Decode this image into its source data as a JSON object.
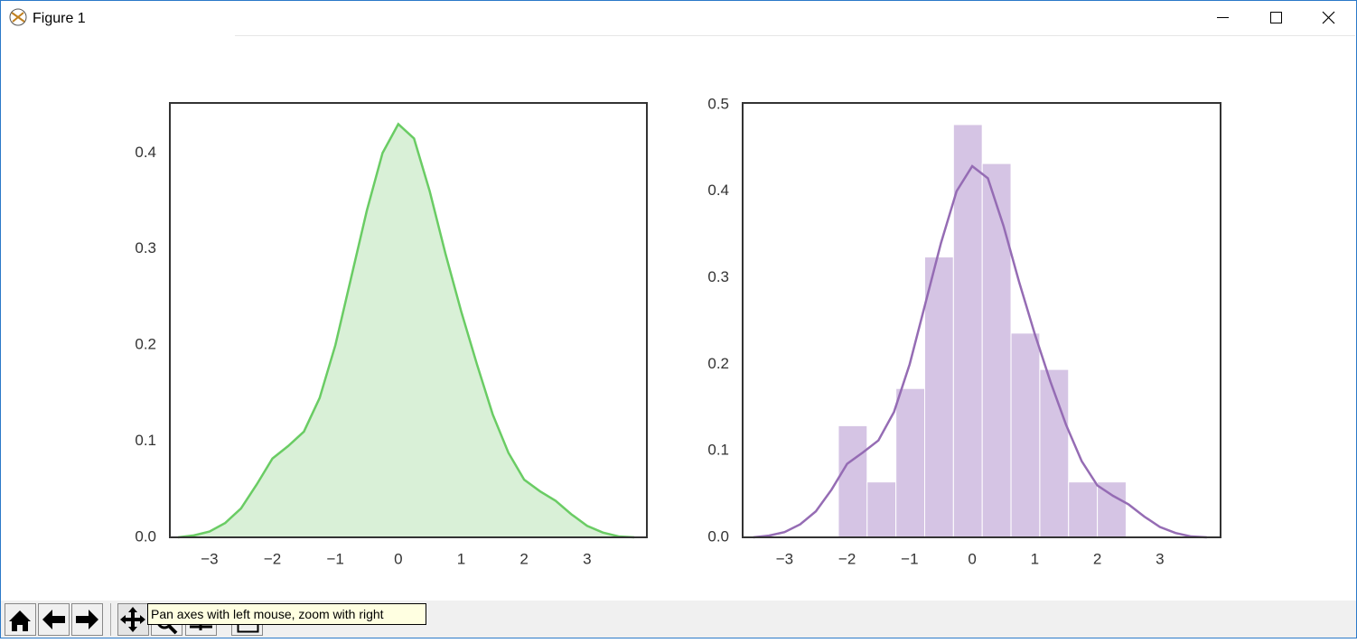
{
  "window": {
    "title": "Figure 1"
  },
  "toolbar": {
    "tooltip": "Pan axes with left mouse, zoom with right"
  },
  "chart_data": [
    {
      "type": "area",
      "x": [
        -3.5,
        -3.25,
        -3.0,
        -2.75,
        -2.5,
        -2.25,
        -2.0,
        -1.75,
        -1.5,
        -1.25,
        -1.0,
        -0.75,
        -0.5,
        -0.25,
        0,
        0.25,
        0.5,
        0.75,
        1.0,
        1.25,
        1.5,
        1.75,
        2.0,
        2.25,
        2.5,
        2.75,
        3.0,
        3.25,
        3.5,
        3.75
      ],
      "values": [
        0.0,
        0.002,
        0.006,
        0.015,
        0.03,
        0.055,
        0.082,
        0.095,
        0.11,
        0.145,
        0.2,
        0.27,
        0.34,
        0.4,
        0.43,
        0.415,
        0.36,
        0.295,
        0.235,
        0.18,
        0.128,
        0.088,
        0.06,
        0.048,
        0.038,
        0.024,
        0.012,
        0.005,
        0.001,
        0.0
      ],
      "color": "#6acc64",
      "fill_color": "#d9f0d7",
      "xlim": [
        -3.63,
        3.95
      ],
      "ylim": [
        0,
        0.452
      ],
      "xticks": [
        {
          "value": -3,
          "label": "−3"
        },
        {
          "value": -2,
          "label": "−2"
        },
        {
          "value": -1,
          "label": "−1"
        },
        0,
        1,
        2,
        3
      ],
      "yticks": [
        {
          "value": 0,
          "label": "0.0"
        },
        0.1,
        0.2,
        0.3,
        0.4
      ],
      "grid": false
    },
    {
      "type": "histogram",
      "bins": [
        -2.14,
        -1.68,
        -1.22,
        -0.76,
        -0.3,
        0.16,
        0.62,
        1.08,
        1.54,
        2.0,
        2.46
      ],
      "values": [
        0.129,
        0.064,
        0.172,
        0.324,
        0.477,
        0.432,
        0.236,
        0.194,
        0.064,
        0.064
      ],
      "color": "#d5c4e4",
      "kde": {
        "x": [
          -3.5,
          -3.25,
          -3.0,
          -2.75,
          -2.5,
          -2.25,
          -2.0,
          -1.75,
          -1.5,
          -1.25,
          -1.0,
          -0.75,
          -0.5,
          -0.25,
          0,
          0.25,
          0.5,
          0.75,
          1.0,
          1.25,
          1.5,
          1.75,
          2.0,
          2.25,
          2.5,
          2.75,
          3.0,
          3.25,
          3.5,
          3.75
        ],
        "values": [
          0.0,
          0.002,
          0.006,
          0.015,
          0.03,
          0.055,
          0.085,
          0.098,
          0.112,
          0.145,
          0.2,
          0.27,
          0.34,
          0.4,
          0.429,
          0.415,
          0.36,
          0.295,
          0.235,
          0.18,
          0.13,
          0.088,
          0.06,
          0.048,
          0.038,
          0.024,
          0.012,
          0.005,
          0.001,
          0.0
        ],
        "color": "#956cb4"
      },
      "xlim": [
        -3.67,
        3.97
      ],
      "ylim": [
        0,
        0.502
      ],
      "xticks": [
        {
          "value": -3,
          "label": "−3"
        },
        {
          "value": -2,
          "label": "−2"
        },
        {
          "value": -1,
          "label": "−1"
        },
        0,
        1,
        2,
        3
      ],
      "yticks": [
        {
          "value": 0,
          "label": "0.0"
        },
        0.1,
        0.2,
        0.3,
        0.4,
        0.5
      ],
      "grid": false
    }
  ]
}
